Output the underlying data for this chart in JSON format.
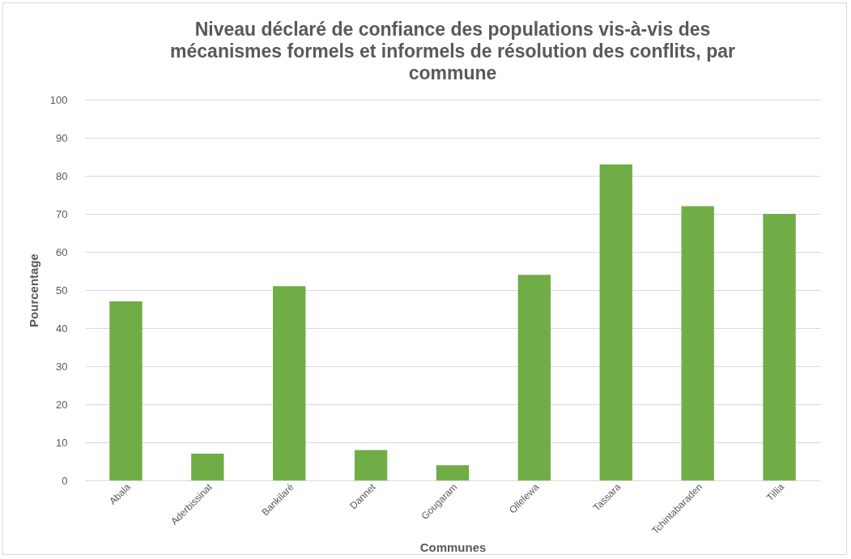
{
  "chart_data": {
    "type": "bar",
    "title": "Niveau déclaré de confiance des populations vis-à-vis des mécanismes formels et informels de résolution des conflits, par commune",
    "xlabel": "Communes",
    "ylabel": "Pourcentage",
    "categories": [
      "Abala",
      "Aderbissinat",
      "Bankilaré",
      "Dannet",
      "Gougaram",
      "Ollelewa",
      "Tassara",
      "Tchintabaraden",
      "Tillia"
    ],
    "values": [
      47,
      7,
      51,
      8,
      4,
      54,
      83,
      72,
      70
    ],
    "color": "#70ad47",
    "ylim": [
      0,
      100
    ],
    "yticks": [
      0,
      10,
      20,
      30,
      40,
      50,
      60,
      70,
      80,
      90,
      100
    ],
    "grid": "y"
  }
}
